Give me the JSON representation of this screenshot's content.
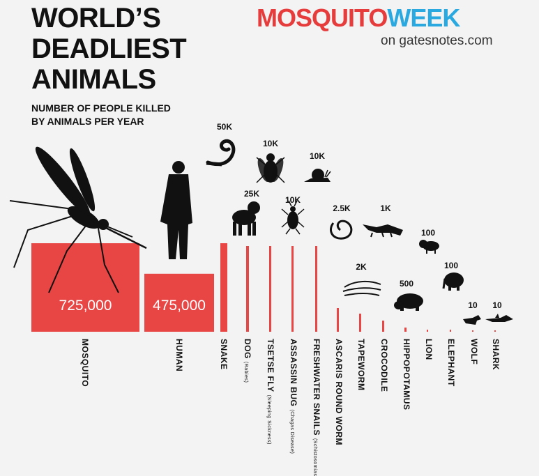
{
  "header": {
    "title_lines": [
      "WORLD’S",
      "DEADLIEST",
      "ANIMALS"
    ],
    "subtitle_lines": [
      "NUMBER OF PEOPLE KILLED",
      "BY ANIMALS PER YEAR"
    ],
    "brand_part1": "MOSQUITO",
    "brand_part2": "WEEK",
    "brand_sub": "on gatesnotes.com"
  },
  "colors": {
    "bar": "#e84545",
    "brand_red": "#e63c3c",
    "brand_blue": "#2aa9e0",
    "silhouette": "#111111"
  },
  "chart_data": {
    "type": "bar",
    "title": "WORLD’S DEADLIEST ANIMALS",
    "subtitle": "NUMBER OF PEOPLE KILLED BY ANIMALS PER YEAR",
    "categories": [
      "MOSQUITO",
      "HUMAN",
      "SNAKE",
      "DOG",
      "TSETSE FLY",
      "ASSASSIN BUG",
      "FRESHWATER SNAILS",
      "ASCARIS ROUND WORM",
      "TAPEWORM",
      "CROCODILE",
      "HIPPOPOTAMUS",
      "LION",
      "ELEPHANT",
      "WOLF",
      "SHARK"
    ],
    "category_notes": [
      "",
      "",
      "",
      "(Rabies)",
      "(Sleeping Sickness)",
      "(Chagas Disease)",
      "(Schistosomiasis)",
      "",
      "",
      "",
      "",
      "",
      "",
      "",
      ""
    ],
    "values": [
      725000,
      475000,
      50000,
      25000,
      10000,
      10000,
      10000,
      2500,
      2000,
      1000,
      500,
      100,
      100,
      10,
      10
    ],
    "value_labels": [
      "725,000",
      "475,000",
      "50K",
      "25K",
      "10K",
      "10K",
      "10K",
      "2.5K",
      "2K",
      "1K",
      "500",
      "100",
      "100",
      "10",
      "10"
    ],
    "icons": [
      "mosquito-icon",
      "human-icon",
      "snake-icon",
      "dog-icon",
      "tsetse-fly-icon",
      "assassin-bug-icon",
      "snail-icon",
      "roundworm-icon",
      "tapeworm-icon",
      "crocodile-icon",
      "hippopotamus-icon",
      "lion-icon",
      "elephant-icon",
      "wolf-icon",
      "shark-icon"
    ],
    "xlabel": "",
    "ylabel": "",
    "grid": false,
    "legend": "none"
  }
}
